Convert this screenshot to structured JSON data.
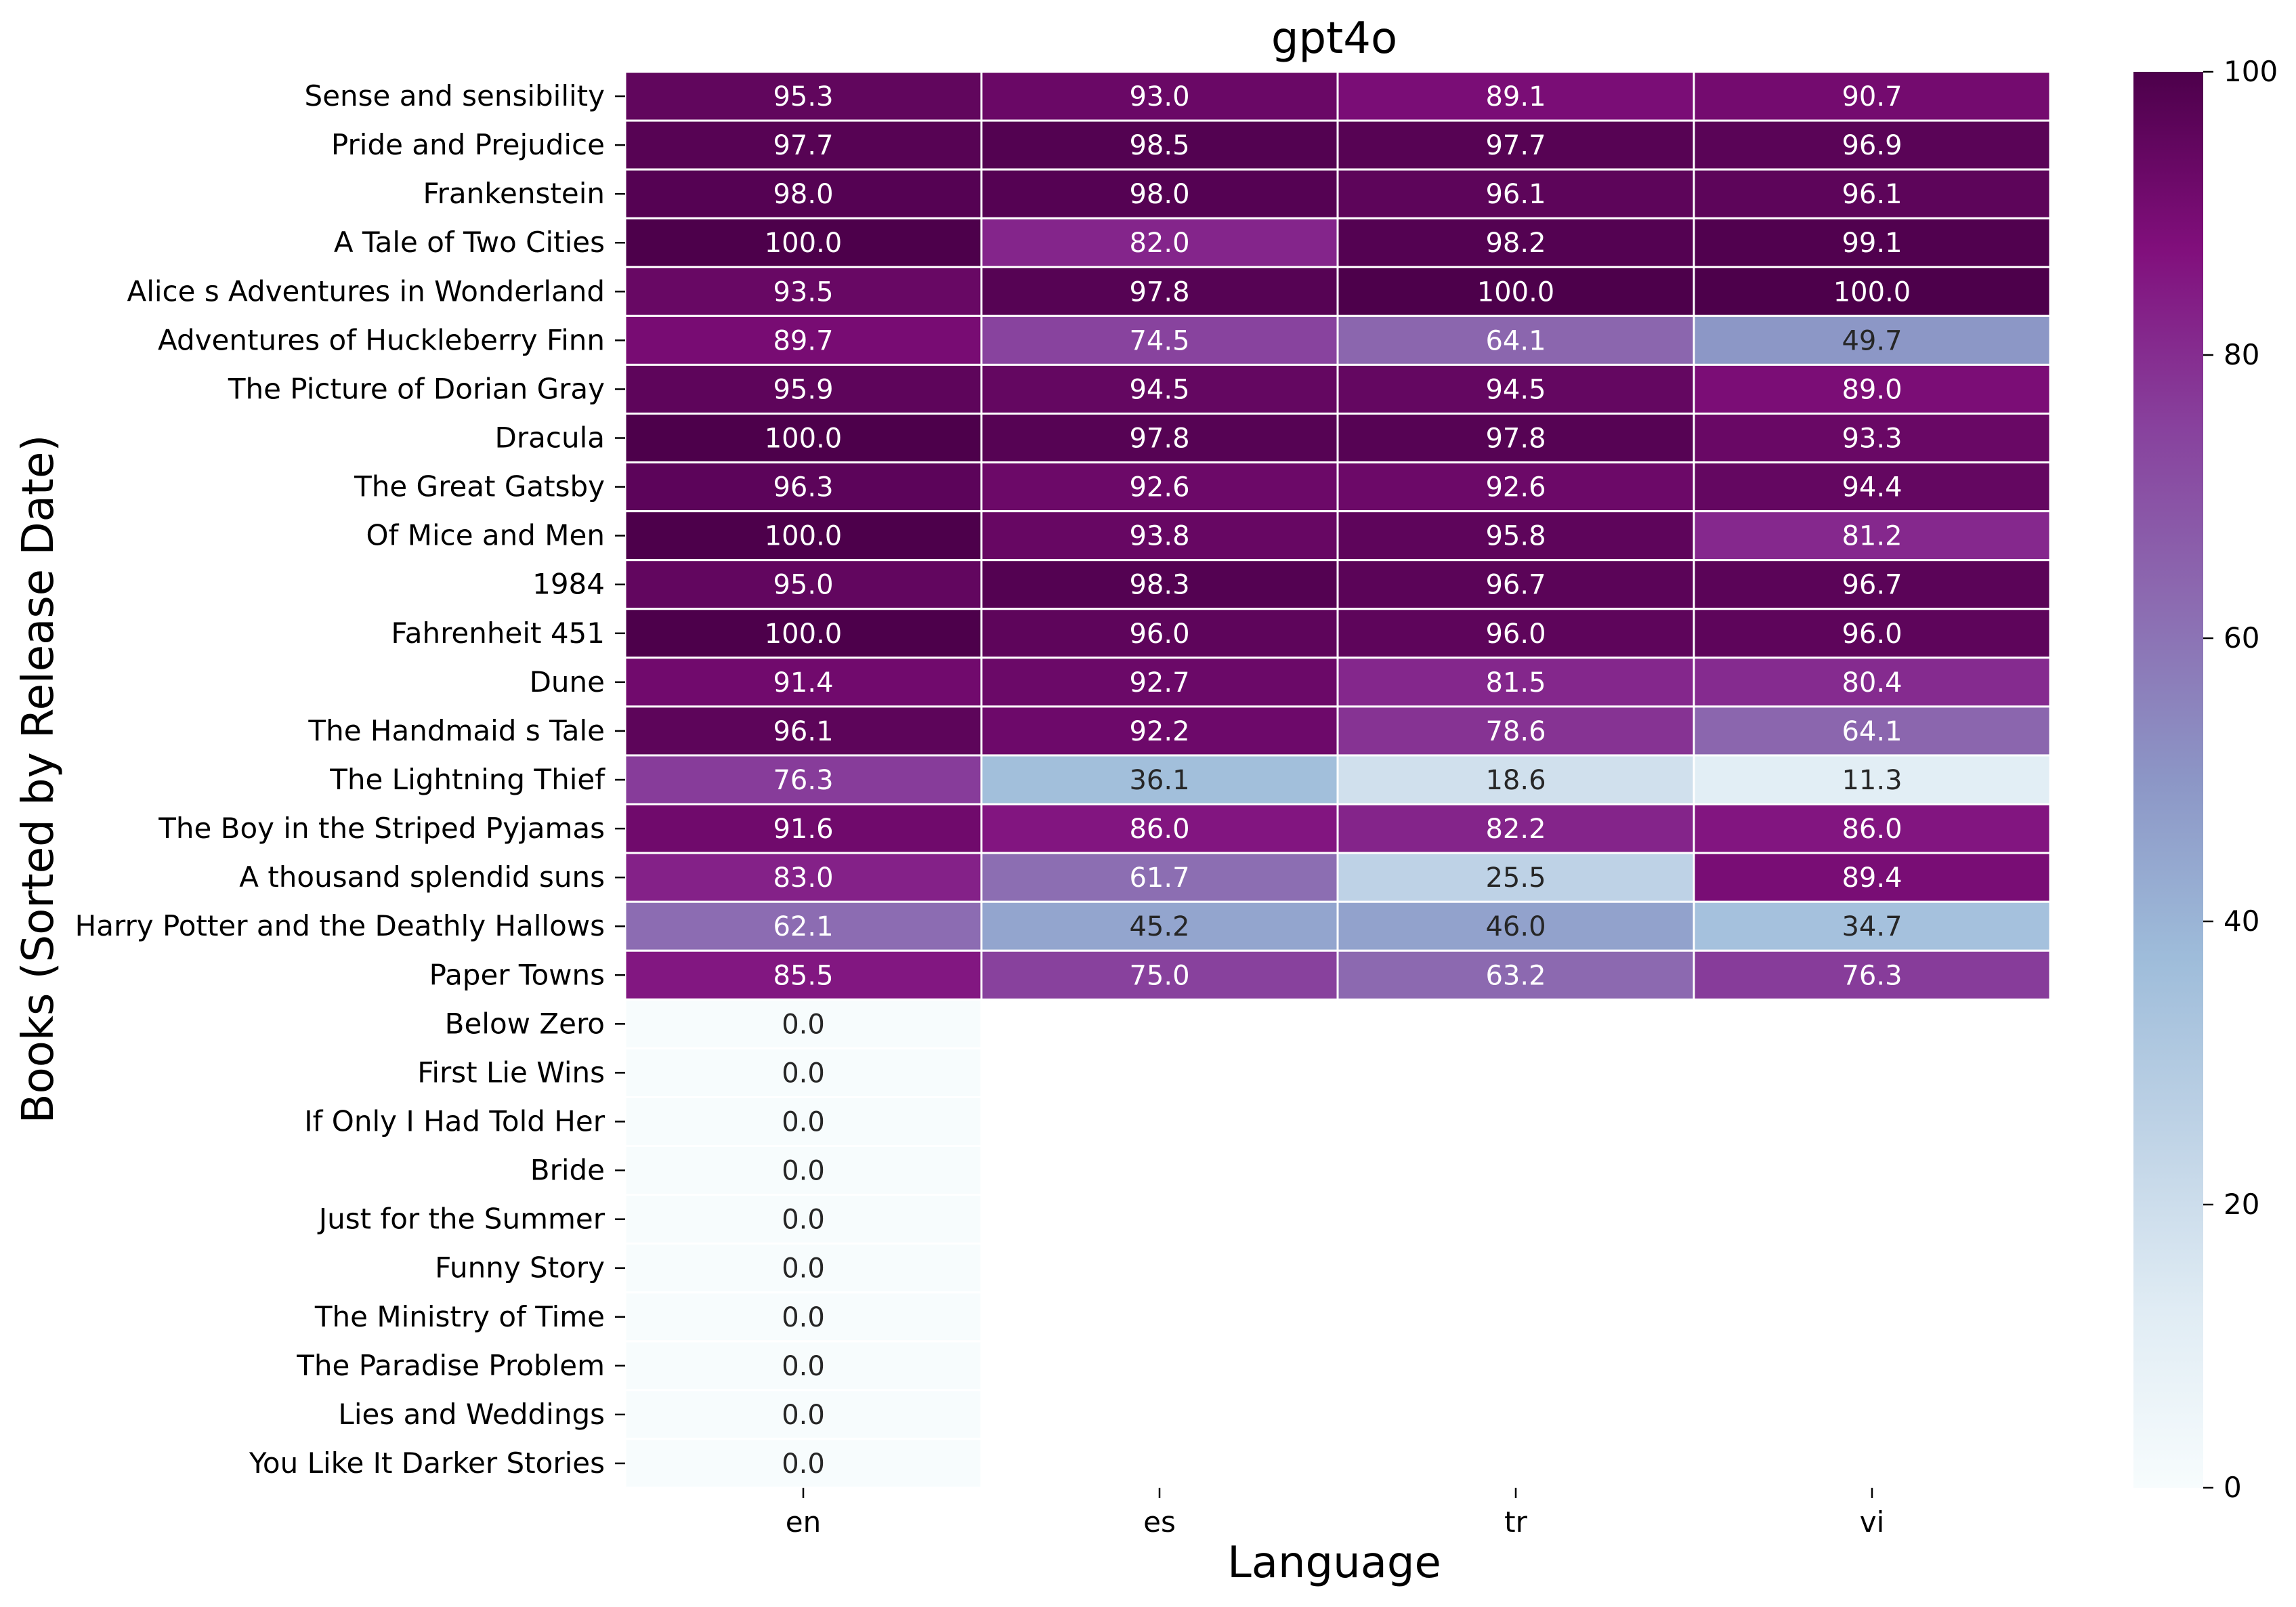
{
  "chart_data": {
    "type": "heatmap",
    "title": "gpt4o",
    "xlabel": "Language",
    "ylabel": "Books (Sorted by Release Date)",
    "columns": [
      "en",
      "es",
      "tr",
      "vi"
    ],
    "rows": [
      "Sense and sensibility",
      "Pride and Prejudice",
      "Frankenstein",
      "A Tale of Two Cities",
      "Alice s Adventures in Wonderland",
      "Adventures of Huckleberry Finn",
      "The Picture of Dorian Gray",
      "Dracula",
      "The Great Gatsby",
      "Of Mice and Men",
      "1984",
      "Fahrenheit 451",
      "Dune",
      "The Handmaid s Tale",
      "The Lightning Thief",
      "The Boy in the Striped Pyjamas",
      "A thousand splendid suns",
      "Harry Potter and the Deathly Hallows",
      "Paper Towns",
      "Below Zero",
      "First Lie Wins",
      "If Only I Had Told Her",
      "Bride",
      "Just for the Summer",
      "Funny Story",
      "The Ministry of Time",
      "The Paradise Problem",
      "Lies and Weddings",
      "You Like It Darker Stories"
    ],
    "values": [
      [
        95.3,
        93.0,
        89.1,
        90.7
      ],
      [
        97.7,
        98.5,
        97.7,
        96.9
      ],
      [
        98.0,
        98.0,
        96.1,
        96.1
      ],
      [
        100.0,
        82.0,
        98.2,
        99.1
      ],
      [
        93.5,
        97.8,
        100.0,
        100.0
      ],
      [
        89.7,
        74.5,
        64.1,
        49.7
      ],
      [
        95.9,
        94.5,
        94.5,
        89.0
      ],
      [
        100.0,
        97.8,
        97.8,
        93.3
      ],
      [
        96.3,
        92.6,
        92.6,
        94.4
      ],
      [
        100.0,
        93.8,
        95.8,
        81.2
      ],
      [
        95.0,
        98.3,
        96.7,
        96.7
      ],
      [
        100.0,
        96.0,
        96.0,
        96.0
      ],
      [
        91.4,
        92.7,
        81.5,
        80.4
      ],
      [
        96.1,
        92.2,
        78.6,
        64.1
      ],
      [
        76.3,
        36.1,
        18.6,
        11.3
      ],
      [
        91.6,
        86.0,
        82.2,
        86.0
      ],
      [
        83.0,
        61.7,
        25.5,
        89.4
      ],
      [
        62.1,
        45.2,
        46.0,
        34.7
      ],
      [
        85.5,
        75.0,
        63.2,
        76.3
      ],
      [
        0.0,
        null,
        null,
        null
      ],
      [
        0.0,
        null,
        null,
        null
      ],
      [
        0.0,
        null,
        null,
        null
      ],
      [
        0.0,
        null,
        null,
        null
      ],
      [
        0.0,
        null,
        null,
        null
      ],
      [
        0.0,
        null,
        null,
        null
      ],
      [
        0.0,
        null,
        null,
        null
      ],
      [
        0.0,
        null,
        null,
        null
      ],
      [
        0.0,
        null,
        null,
        null
      ],
      [
        0.0,
        null,
        null,
        null
      ]
    ],
    "colormap": "BuPu",
    "vmin": 0,
    "vmax": 100,
    "colorbar_ticks": [
      "0",
      "20",
      "40",
      "60",
      "80",
      "100"
    ],
    "colors": {
      "low": "#f7fcfd",
      "mid": "#8c96c6",
      "high": "#4d004b",
      "cell_border": "#ffffff"
    }
  }
}
